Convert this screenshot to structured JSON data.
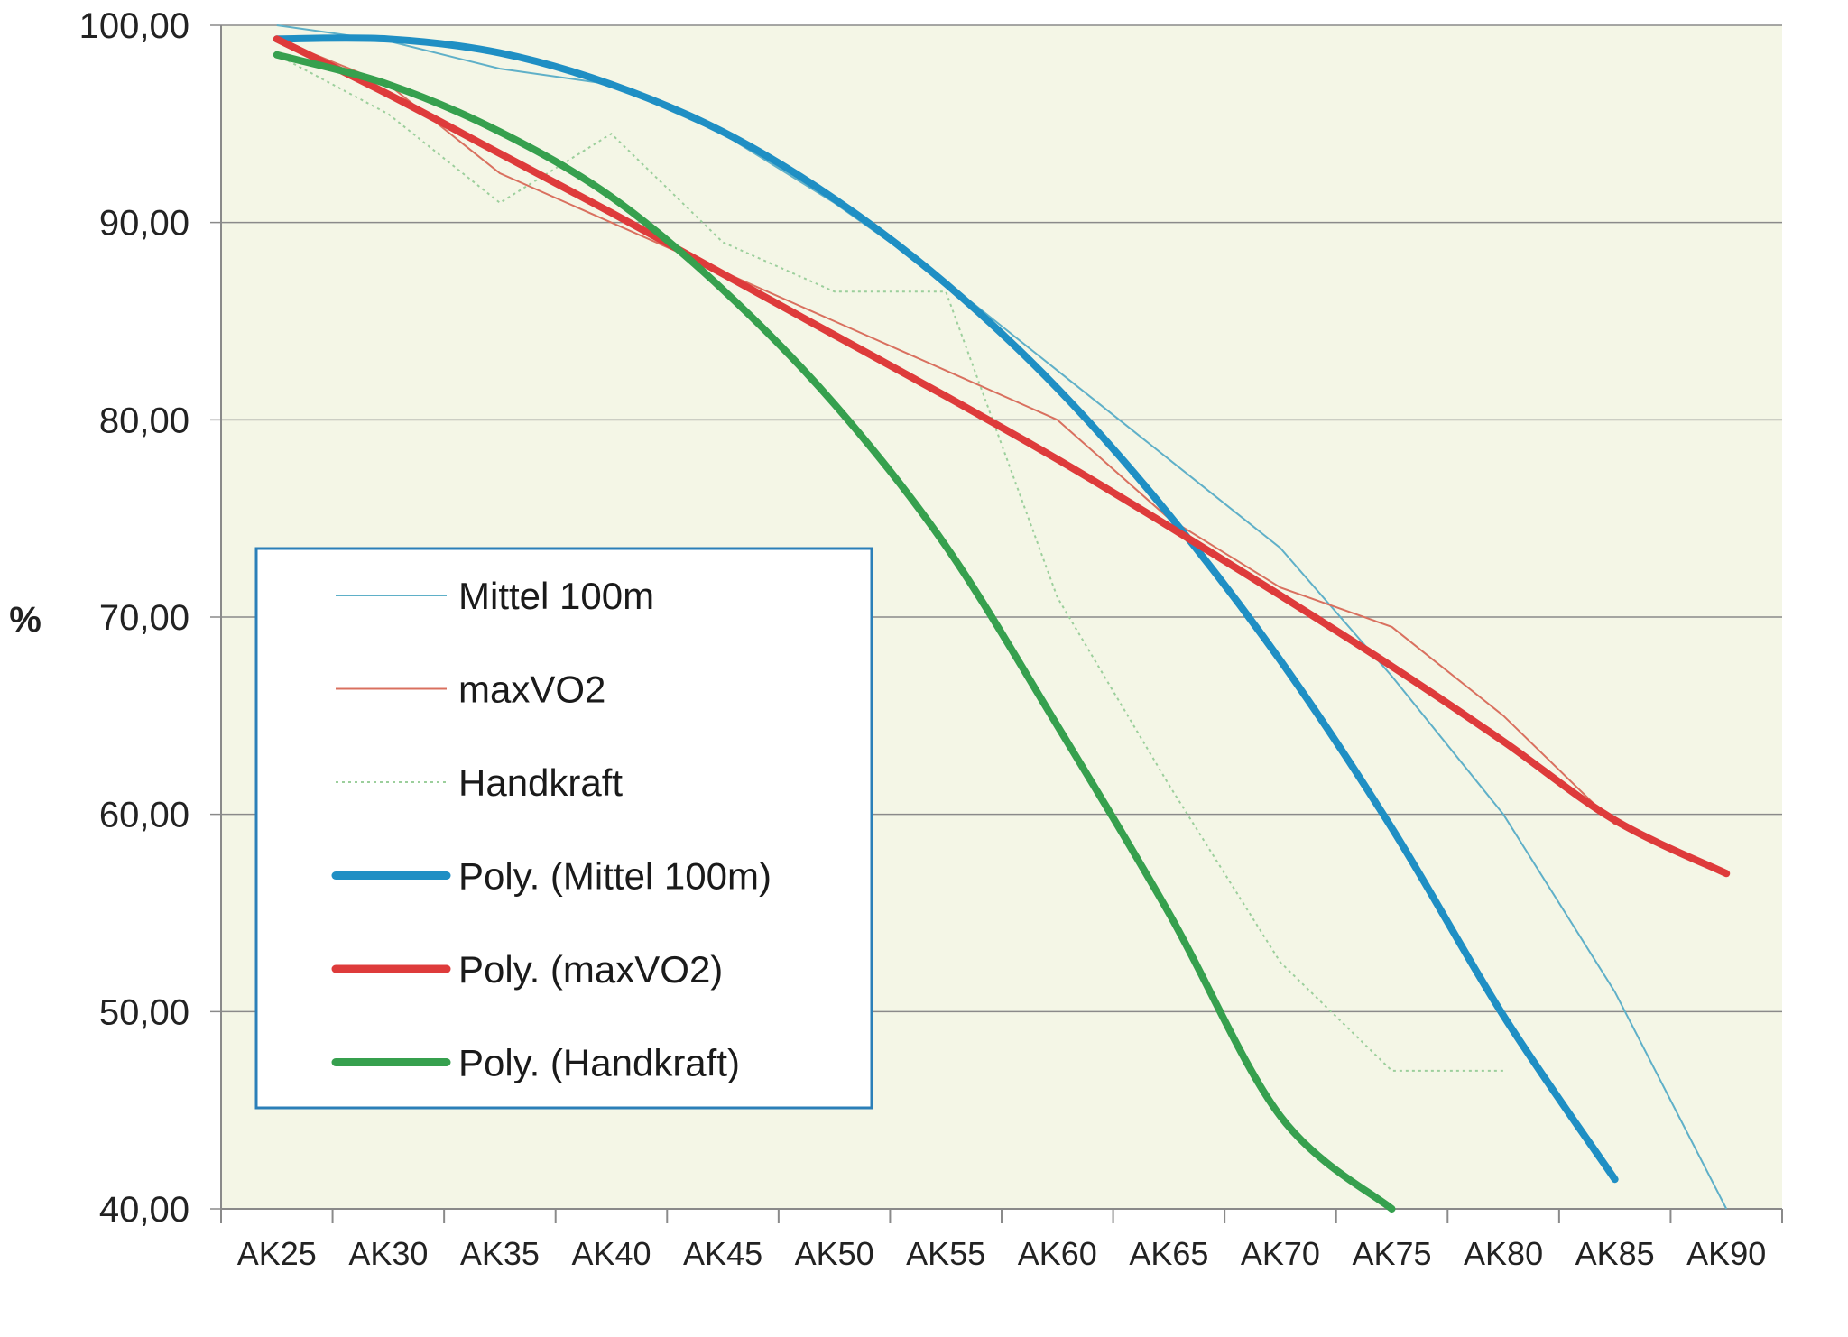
{
  "chart_data": {
    "type": "line",
    "ylabel": "%",
    "ylim": [
      40,
      100
    ],
    "yticks": [
      "40,00",
      "50,00",
      "60,00",
      "70,00",
      "80,00",
      "90,00",
      "100,00"
    ],
    "categories": [
      "AK25",
      "AK30",
      "AK35",
      "AK40",
      "AK45",
      "AK50",
      "AK55",
      "AK60",
      "AK65",
      "AK70",
      "AK75",
      "AK80",
      "AK85",
      "AK90"
    ],
    "grid": true,
    "legend": "inside-left",
    "series": [
      {
        "name": "Mittel 100m",
        "style": "thin",
        "color": "#5fb0c8",
        "values": [
          100.0,
          99.2,
          97.8,
          97.0,
          94.5,
          91.0,
          87.0,
          82.5,
          78.0,
          73.5,
          67.0,
          60.0,
          51.0,
          40.0
        ]
      },
      {
        "name": "maxVO2",
        "style": "thin",
        "color": "#d9705f",
        "values": [
          99.3,
          97.0,
          92.5,
          90.0,
          87.5,
          85.0,
          82.5,
          80.0,
          75.0,
          71.5,
          69.5,
          65.0,
          59.5,
          null
        ]
      },
      {
        "name": "Handkraft",
        "style": "dotted",
        "color": "#9ccf9c",
        "values": [
          98.5,
          95.5,
          91.0,
          94.5,
          89.0,
          86.5,
          86.5,
          71.0,
          61.5,
          52.5,
          47.0,
          47.0,
          null,
          null
        ]
      },
      {
        "name": "Poly. (Mittel 100m)",
        "style": "trend",
        "color": "#1f8fc4",
        "values": [
          99.3,
          99.3,
          98.6,
          97.0,
          94.6,
          91.2,
          86.9,
          81.6,
          75.2,
          67.8,
          59.3,
          49.8,
          41.5,
          null
        ]
      },
      {
        "name": "Poly. (maxVO2)",
        "style": "trend",
        "color": "#de3b3b",
        "values": [
          99.3,
          96.5,
          93.5,
          90.5,
          87.4,
          84.3,
          81.2,
          78.0,
          74.6,
          71.1,
          67.5,
          63.7,
          59.7,
          57.0
        ]
      },
      {
        "name": "Poly. (Handkraft)",
        "style": "trend",
        "color": "#36a04e",
        "values": [
          98.5,
          97.0,
          94.6,
          91.3,
          86.6,
          80.8,
          73.6,
          64.5,
          55.0,
          44.7,
          40.0,
          null,
          null,
          null
        ]
      }
    ]
  }
}
